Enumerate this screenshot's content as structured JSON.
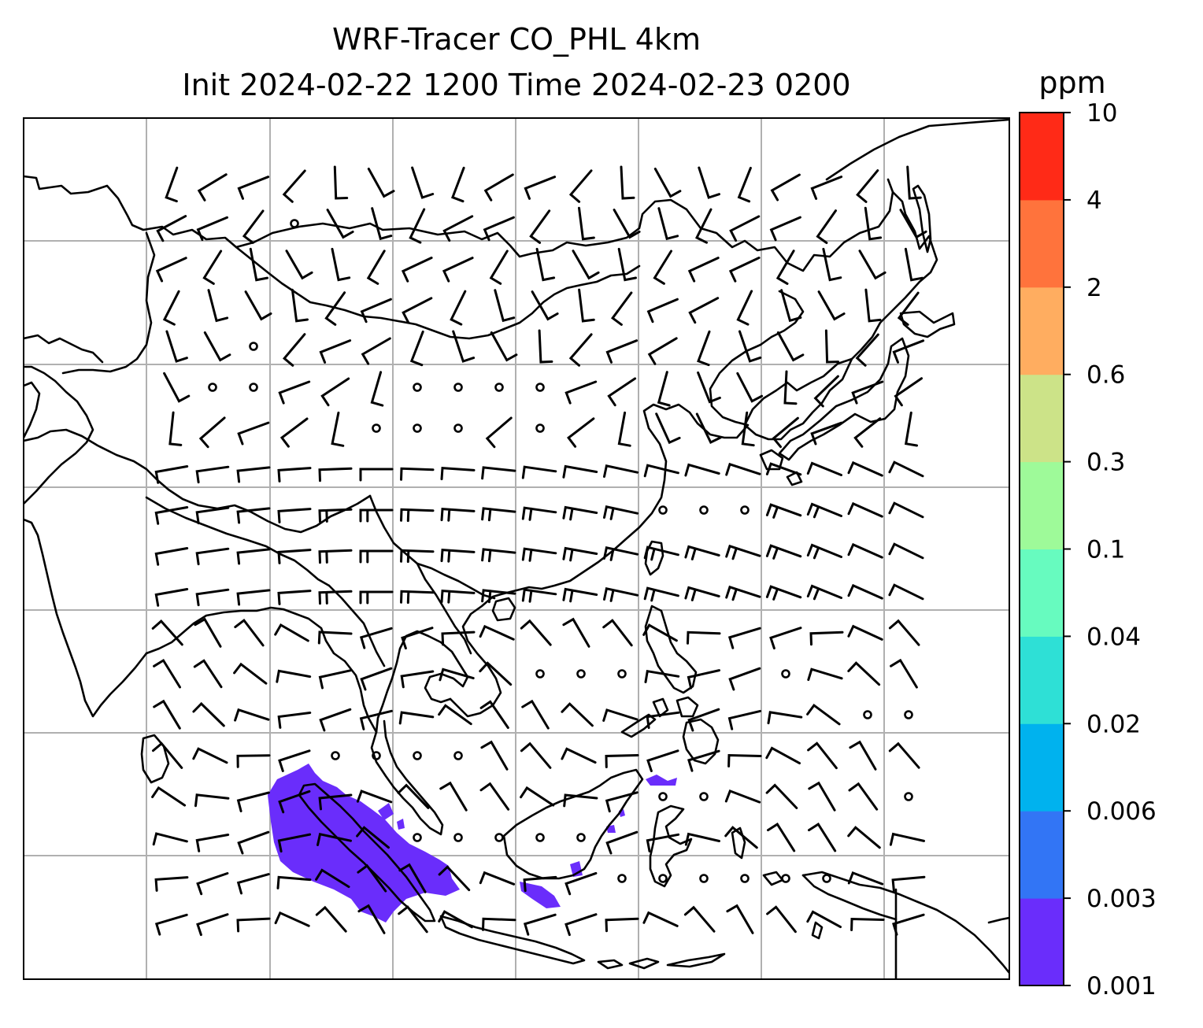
{
  "title": {
    "line1": "WRF-Tracer CO_PHL 4km",
    "line2": "Init 2024-02-22 1200 Time 2024-02-23 0200"
  },
  "colorbar": {
    "unit": "ppm",
    "ticks": [
      "0.001",
      "0.003",
      "0.006",
      "0.02",
      "0.04",
      "0.1",
      "0.3",
      "0.6",
      "2",
      "4",
      "10"
    ],
    "colors": [
      "#6a2dfb",
      "#3275f5",
      "#00b2ee",
      "#2ee0d6",
      "#67fbbf",
      "#9efa99",
      "#cce388",
      "#ffad60",
      "#ff733c",
      "#ff2a17"
    ]
  },
  "map": {
    "gridlines": true,
    "gridline_color": "#b0b0b0",
    "coastline_color": "#000000",
    "barb_color": "#000000",
    "tracer_color": "#6a2dfb"
  }
}
